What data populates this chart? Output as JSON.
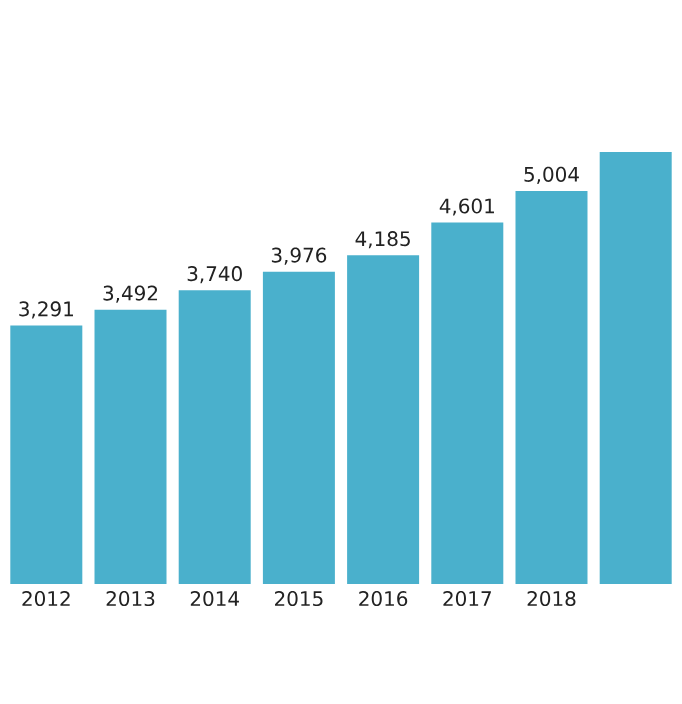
{
  "chart_data": {
    "type": "bar",
    "categories": [
      "2012",
      "2013",
      "2014",
      "2015",
      "2016",
      "2017",
      "2018",
      null
    ],
    "values": [
      3291,
      3492,
      3740,
      3976,
      4185,
      4601,
      5004,
      5500
    ],
    "value_labels": [
      "3,291",
      "3,492",
      "3,740",
      "3,976",
      "4,185",
      "4,601",
      "5,004",
      null
    ],
    "color": "#4ab0cc"
  }
}
